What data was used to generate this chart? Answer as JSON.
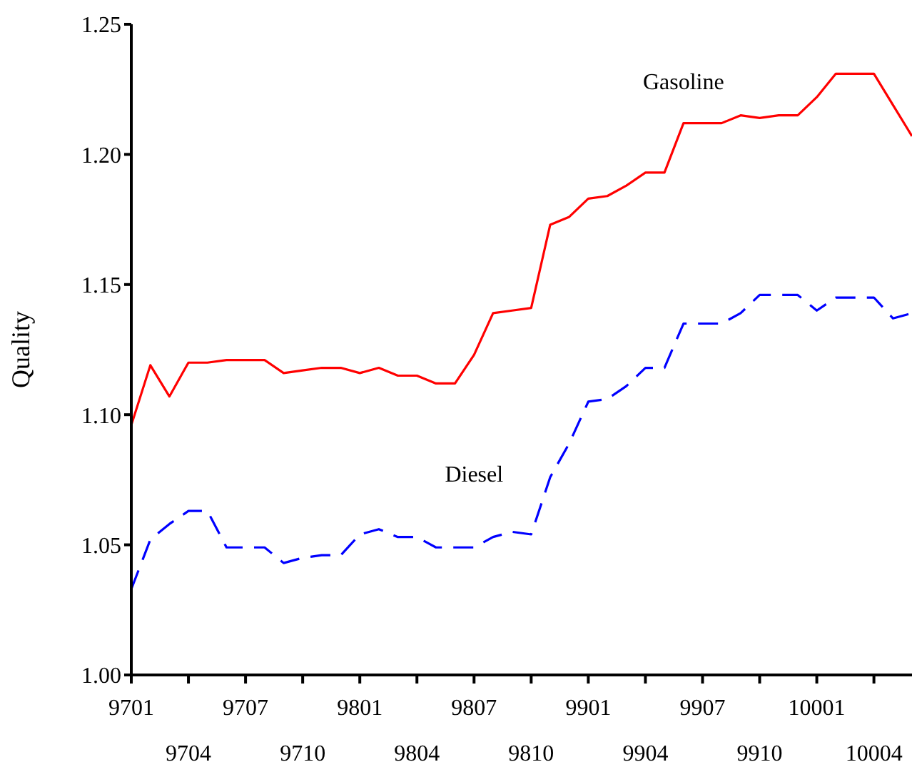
{
  "chart_data": {
    "type": "line",
    "ylabel": "Quality",
    "categories": [
      "9701",
      null,
      null,
      "9704",
      null,
      null,
      "9707",
      null,
      null,
      "9710",
      null,
      null,
      "9801",
      null,
      null,
      "9804",
      null,
      null,
      "9807",
      null,
      null,
      "9810",
      null,
      null,
      "9901",
      null,
      null,
      "9904",
      null,
      null,
      "9907",
      null,
      null,
      "9910",
      null,
      null,
      "10001",
      null,
      null,
      "10004",
      null,
      null
    ],
    "series": [
      {
        "name": "Gasoline",
        "color": "#ff0000",
        "line_style": "solid",
        "values": [
          1.096,
          1.119,
          1.107,
          1.12,
          1.12,
          1.121,
          1.121,
          1.121,
          1.116,
          1.117,
          1.118,
          1.118,
          1.116,
          1.118,
          1.115,
          1.115,
          1.112,
          1.112,
          1.123,
          1.139,
          1.14,
          1.141,
          1.173,
          1.176,
          1.183,
          1.184,
          1.188,
          1.193,
          1.193,
          1.212,
          1.212,
          1.212,
          1.215,
          1.214,
          1.215,
          1.215,
          1.222,
          1.231,
          1.231,
          1.231,
          1.219,
          1.207
        ]
      },
      {
        "name": "Diesel",
        "color": "#0000ff",
        "line_style": "dashed",
        "values": [
          1.033,
          1.052,
          1.058,
          1.063,
          1.063,
          1.049,
          1.049,
          1.049,
          1.043,
          1.045,
          1.046,
          1.046,
          1.054,
          1.056,
          1.053,
          1.053,
          1.049,
          1.049,
          1.049,
          1.053,
          1.055,
          1.054,
          1.076,
          1.089,
          1.105,
          1.106,
          1.111,
          1.118,
          1.118,
          1.135,
          1.135,
          1.135,
          1.139,
          1.146,
          1.146,
          1.146,
          1.14,
          1.145,
          1.145,
          1.145,
          1.137,
          1.139
        ]
      }
    ],
    "ylim": [
      1.0,
      1.25
    ],
    "yticks": [
      {
        "value": 1.0,
        "label": "1.00"
      },
      {
        "value": 1.05,
        "label": "1.05"
      },
      {
        "value": 1.1,
        "label": "1.10"
      },
      {
        "value": 1.15,
        "label": "1.15"
      },
      {
        "value": 1.2,
        "label": "1.20"
      },
      {
        "value": 1.25,
        "label": "1.25"
      }
    ],
    "grid": false,
    "marker": "none"
  }
}
